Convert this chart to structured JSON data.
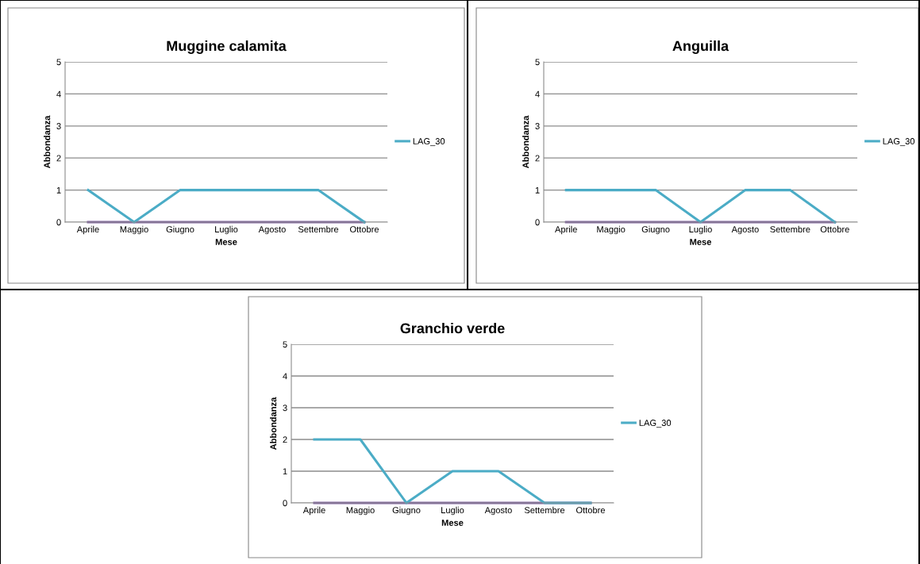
{
  "chart_data": [
    {
      "type": "line",
      "title": "Muggine calamita",
      "xlabel": "Mese",
      "ylabel": "Abbondanza",
      "categories": [
        "Aprile",
        "Maggio",
        "Giugno",
        "Luglio",
        "Agosto",
        "Settembre",
        "Ottobre"
      ],
      "ylim": [
        0,
        5
      ],
      "yticks": [
        0,
        1,
        2,
        3,
        4,
        5
      ],
      "grid": "y",
      "legend": "right",
      "series": [
        {
          "color": "#7f5f9f",
          "values": [
            0,
            0,
            0,
            0,
            0,
            0,
            0
          ]
        },
        {
          "name": "LAG_30",
          "color": "#4bacc6",
          "values": [
            1,
            0,
            1,
            1,
            1,
            1,
            0
          ]
        }
      ]
    },
    {
      "type": "line",
      "title": "Anguilla",
      "xlabel": "Mese",
      "ylabel": "Abbondanza",
      "categories": [
        "Aprile",
        "Maggio",
        "Giugno",
        "Luglio",
        "Agosto",
        "Settembre",
        "Ottobre"
      ],
      "ylim": [
        0,
        5
      ],
      "yticks": [
        0,
        1,
        2,
        3,
        4,
        5
      ],
      "grid": "y",
      "legend": "right",
      "series": [
        {
          "color": "#7f5f9f",
          "values": [
            0,
            0,
            0,
            0,
            0,
            0,
            0
          ]
        },
        {
          "name": "LAG_30",
          "color": "#4bacc6",
          "values": [
            1,
            1,
            1,
            0,
            1,
            1,
            0
          ]
        }
      ]
    },
    {
      "type": "line",
      "title": "Granchio verde",
      "xlabel": "Mese",
      "ylabel": "Abbondanza",
      "categories": [
        "Aprile",
        "Maggio",
        "Giugno",
        "Luglio",
        "Agosto",
        "Settembre",
        "Ottobre"
      ],
      "ylim": [
        0,
        5
      ],
      "yticks": [
        0,
        1,
        2,
        3,
        4,
        5
      ],
      "grid": "y",
      "legend": "right",
      "series": [
        {
          "color": "#7f5f9f",
          "values": [
            0,
            0,
            0,
            0,
            0,
            0,
            0
          ]
        },
        {
          "name": "LAG_30",
          "color": "#4bacc6",
          "values": [
            2,
            2,
            0,
            1,
            1,
            0,
            0
          ]
        }
      ]
    }
  ]
}
